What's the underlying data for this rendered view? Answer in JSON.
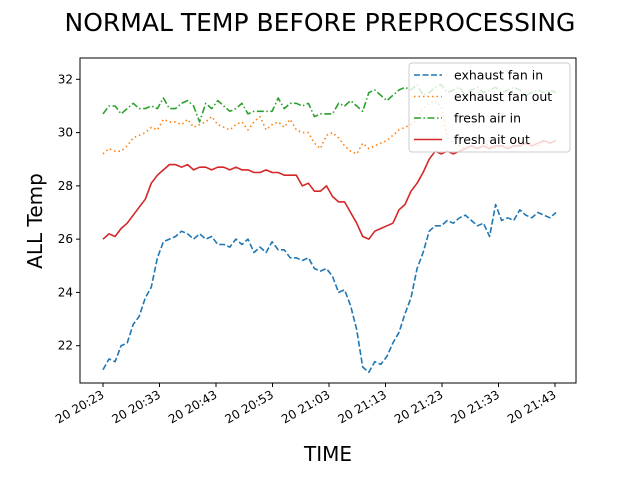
{
  "chart_data": {
    "type": "line",
    "title": "NORMAL TEMP BEFORE PREPROCESSING",
    "xlabel": "TIME",
    "ylabel": "ALL Temp",
    "x_start": "20 20:22",
    "x_step_minutes": 1,
    "x_ticks": [
      "20 20:23",
      "20 20:33",
      "20 20:43",
      "20 20:53",
      "20 21:03",
      "20 21:13",
      "20 21:23",
      "20 21:33",
      "20 21:43"
    ],
    "y_ticks": [
      22,
      24,
      26,
      28,
      30,
      32
    ],
    "ylim": [
      20.6,
      32.8
    ],
    "legend_position": "top-right",
    "grid": false,
    "series": [
      {
        "name": "exhaust fan in",
        "color": "#1f77b4",
        "dash": "dashed",
        "values": [
          21.1,
          21.5,
          21.4,
          22.0,
          22.1,
          22.8,
          23.1,
          23.8,
          24.2,
          25.3,
          25.9,
          26.0,
          26.1,
          26.3,
          26.2,
          26.0,
          26.2,
          26.0,
          26.1,
          25.8,
          25.8,
          25.7,
          26.0,
          25.8,
          26.0,
          25.5,
          25.7,
          25.5,
          25.9,
          25.6,
          25.6,
          25.3,
          25.3,
          25.2,
          25.3,
          24.9,
          24.8,
          24.9,
          24.6,
          24.0,
          24.1,
          23.5,
          22.6,
          21.2,
          21.0,
          21.4,
          21.3,
          21.6,
          22.1,
          22.5,
          23.2,
          23.8,
          24.9,
          25.5,
          26.3,
          26.5,
          26.5,
          26.7,
          26.6,
          26.8,
          26.9,
          26.7,
          26.5,
          26.6,
          26.1,
          27.3,
          26.7,
          26.8,
          26.7,
          27.1,
          26.9,
          26.8,
          27.0,
          26.9,
          26.8,
          27.0
        ]
      },
      {
        "name": "exhaust fan out",
        "color": "#ff7f0e",
        "dash": "dotted",
        "values": [
          29.2,
          29.4,
          29.3,
          29.3,
          29.5,
          29.8,
          29.9,
          30.0,
          30.2,
          30.1,
          30.5,
          30.4,
          30.4,
          30.3,
          30.5,
          30.2,
          30.3,
          30.4,
          30.6,
          30.3,
          30.2,
          30.1,
          30.3,
          30.4,
          30.1,
          30.4,
          30.6,
          30.1,
          30.3,
          30.4,
          30.2,
          30.5,
          30.1,
          30.0,
          30.0,
          29.6,
          29.4,
          29.9,
          30.0,
          29.8,
          29.5,
          29.3,
          29.2,
          29.6,
          29.4,
          29.5,
          29.6,
          29.7,
          29.9,
          30.1,
          30.2,
          30.3,
          30.5,
          30.9,
          31.1,
          31.2,
          31.0,
          29.8,
          29.6,
          29.5,
          29.4,
          29.5,
          29.4,
          29.6,
          29.5,
          29.4,
          29.5,
          29.5,
          29.7,
          29.5,
          29.6,
          29.6,
          29.5,
          29.7,
          29.6,
          29.7
        ]
      },
      {
        "name": "fresh air in",
        "color": "#2ca02c",
        "dash": "dashdot",
        "values": [
          30.7,
          31.0,
          31.0,
          30.7,
          30.9,
          31.1,
          30.9,
          30.9,
          31.0,
          30.9,
          31.3,
          30.9,
          30.9,
          31.1,
          31.2,
          31.0,
          30.4,
          31.1,
          30.9,
          31.2,
          31.0,
          30.8,
          30.9,
          31.1,
          30.7,
          30.8,
          30.8,
          30.8,
          30.8,
          31.3,
          30.9,
          31.1,
          31.1,
          31.0,
          31.1,
          30.6,
          30.7,
          30.7,
          30.7,
          31.1,
          31.0,
          31.2,
          31.0,
          30.8,
          31.5,
          31.6,
          31.4,
          31.2,
          31.4,
          31.6,
          31.7,
          31.6,
          31.8,
          31.4,
          31.5,
          31.7,
          31.8,
          31.5,
          31.6,
          31.7,
          31.4,
          31.6,
          31.7,
          31.5,
          31.6,
          31.7,
          31.5,
          31.6,
          31.7,
          31.6,
          31.4,
          31.5,
          31.6,
          31.5,
          31.6,
          31.5
        ]
      },
      {
        "name": "fresh ait out",
        "color": "#d62728",
        "dash": "solid",
        "values": [
          26.0,
          26.2,
          26.1,
          26.4,
          26.6,
          26.9,
          27.2,
          27.5,
          28.1,
          28.4,
          28.6,
          28.8,
          28.8,
          28.7,
          28.8,
          28.6,
          28.7,
          28.7,
          28.6,
          28.7,
          28.7,
          28.6,
          28.7,
          28.6,
          28.6,
          28.5,
          28.5,
          28.6,
          28.5,
          28.5,
          28.4,
          28.4,
          28.4,
          28.0,
          28.1,
          27.8,
          27.8,
          28.0,
          27.6,
          27.4,
          27.4,
          27.0,
          26.6,
          26.1,
          26.0,
          26.3,
          26.4,
          26.5,
          26.6,
          27.1,
          27.3,
          27.8,
          28.1,
          28.5,
          29.0,
          29.3,
          29.2,
          29.3,
          29.2,
          29.3,
          29.4,
          29.5,
          29.4,
          29.5,
          29.4,
          29.5,
          29.5,
          29.4,
          29.5,
          29.5,
          29.6,
          29.5,
          29.6,
          29.7,
          29.6,
          29.7
        ]
      }
    ]
  }
}
